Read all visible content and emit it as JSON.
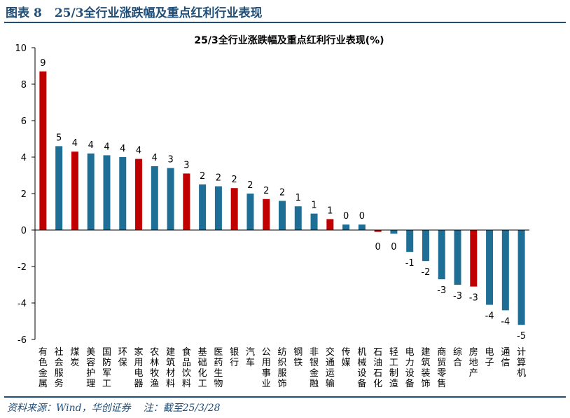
{
  "header": {
    "figure_label": "图表",
    "figure_number": "8",
    "figure_title": "25/3全行业涨跌幅及重点红利行业表现"
  },
  "footer": {
    "source": "资料来源：Wind，华创证券",
    "note": "注：截至25/3/28"
  },
  "colors": {
    "blue": "#1f6e96",
    "red": "#c00000",
    "title_blue": "#1f4e79"
  },
  "chart_data": {
    "type": "bar",
    "title": "25/3全行业涨跌幅及重点红利行业表现(%)",
    "xlabel": "",
    "ylabel": "",
    "ylim": [
      -6,
      10
    ],
    "yticks": [
      10,
      8,
      6,
      4,
      2,
      0,
      -2,
      -4,
      -6
    ],
    "grid": false,
    "categories": [
      "有色金属",
      "社会服务",
      "煤炭",
      "美容护理",
      "国防军工",
      "环保",
      "家用电器",
      "农林牧渔",
      "建筑材料",
      "食品饮料",
      "基础化工",
      "医药生物",
      "银行",
      "汽车",
      "公用事业",
      "纺织服饰",
      "钢铁",
      "非银金融",
      "交通运输",
      "传媒",
      "机械设备",
      "石油石化",
      "轻工制造",
      "电力设备",
      "建筑装饰",
      "商贸零售",
      "综合",
      "房地产",
      "电子",
      "通信",
      "计算机"
    ],
    "values": [
      8.7,
      4.6,
      4.3,
      4.2,
      4.1,
      4.0,
      3.9,
      3.5,
      3.4,
      3.1,
      2.5,
      2.4,
      2.3,
      2.0,
      1.7,
      1.6,
      1.3,
      0.9,
      0.6,
      0.3,
      0.3,
      -0.1,
      -0.2,
      -1.2,
      -1.7,
      -2.7,
      -3.0,
      -3.1,
      -4.1,
      -4.4,
      -5.2
    ],
    "data_labels": [
      "9",
      "5",
      "4",
      "4",
      "4",
      "4",
      "4",
      "4",
      "3",
      "3",
      "2",
      "2",
      "2",
      "2",
      "2",
      "2",
      "1",
      "1",
      "1",
      "0",
      "0",
      "0",
      "0",
      "-1",
      "-2",
      "-3",
      "-3",
      "-3",
      "-4",
      "-4",
      "-5"
    ],
    "highlight": [
      "red",
      "blue",
      "red",
      "blue",
      "blue",
      "blue",
      "red",
      "blue",
      "blue",
      "red",
      "blue",
      "blue",
      "red",
      "blue",
      "red",
      "blue",
      "blue",
      "blue",
      "red",
      "blue",
      "blue",
      "red",
      "blue",
      "blue",
      "blue",
      "blue",
      "blue",
      "red",
      "blue",
      "blue",
      "blue"
    ]
  }
}
